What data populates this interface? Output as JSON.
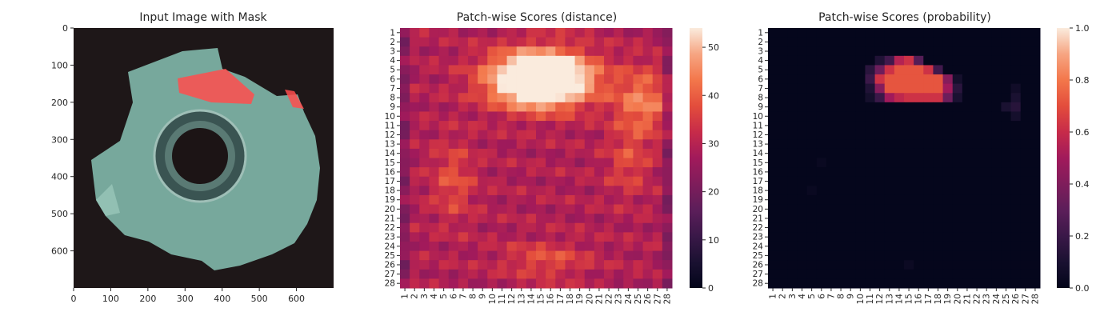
{
  "chart_data": [
    {
      "type": "image",
      "title": "Input Image with Mask",
      "xlabel": "",
      "ylabel": "",
      "xlim": [
        0,
        700
      ],
      "ylim": [
        700,
        0
      ],
      "xticks": [
        0,
        100,
        200,
        300,
        400,
        500,
        600
      ],
      "yticks": [
        0,
        100,
        200,
        300,
        400,
        500,
        600
      ],
      "mask_color": "#ff4d4d",
      "object_color": "#7fb5a8",
      "background_color": "#1e1718"
    },
    {
      "type": "heatmap",
      "title": "Patch-wise Scores (distance)",
      "xlabel": "",
      "ylabel": "",
      "rows": 28,
      "cols": 28,
      "tick_labels": [
        "1",
        "2",
        "3",
        "4",
        "5",
        "6",
        "7",
        "8",
        "9",
        "10",
        "11",
        "12",
        "13",
        "14",
        "15",
        "16",
        "17",
        "18",
        "19",
        "20",
        "21",
        "22",
        "23",
        "24",
        "25",
        "26",
        "27",
        "28"
      ],
      "colorbar": {
        "min": 0,
        "max": 54,
        "ticks": [
          0,
          10,
          20,
          30,
          40,
          50
        ],
        "colormap": "rocket"
      },
      "hotspots": [
        {
          "row": 6,
          "col": 15,
          "value": 53,
          "sigma_r": 2.0,
          "sigma_c": 3.5
        },
        {
          "row": 8.5,
          "col": 25.5,
          "value": 15,
          "sigma_r": 2.5,
          "sigma_c": 2.0
        },
        {
          "row": 17,
          "col": 6,
          "value": 9,
          "sigma_r": 3.0,
          "sigma_c": 1.5
        },
        {
          "row": 25.5,
          "col": 15.5,
          "value": 9,
          "sigma_r": 1.3,
          "sigma_c": 3.0
        },
        {
          "row": 15,
          "col": 24,
          "value": 8,
          "sigma_r": 2.5,
          "sigma_c": 1.5
        }
      ],
      "base_value": 29
    },
    {
      "type": "heatmap",
      "title": "Patch-wise Scores (probability)",
      "xlabel": "",
      "ylabel": "",
      "rows": 28,
      "cols": 28,
      "tick_labels": [
        "1",
        "2",
        "3",
        "4",
        "5",
        "6",
        "7",
        "8",
        "9",
        "10",
        "11",
        "12",
        "13",
        "14",
        "15",
        "16",
        "17",
        "18",
        "19",
        "20",
        "21",
        "22",
        "23",
        "24",
        "25",
        "26",
        "27",
        "28"
      ],
      "colorbar": {
        "min": 0,
        "max": 1.0,
        "ticks": [
          0.0,
          0.2,
          0.4,
          0.6,
          0.8,
          1.0
        ],
        "tick_labels": [
          "0.0",
          "0.2",
          "0.4",
          "0.6",
          "0.8",
          "1.0"
        ],
        "colormap": "rocket"
      },
      "cells": [
        [
          4,
          13,
          0.22
        ],
        [
          4,
          14,
          0.55
        ],
        [
          4,
          15,
          0.62
        ],
        [
          4,
          16,
          0.28
        ],
        [
          4,
          12,
          0.12
        ],
        [
          5,
          11,
          0.15
        ],
        [
          5,
          12,
          0.35
        ],
        [
          5,
          13,
          0.62
        ],
        [
          5,
          14,
          0.72
        ],
        [
          5,
          15,
          0.72
        ],
        [
          5,
          16,
          0.72
        ],
        [
          5,
          17,
          0.62
        ],
        [
          5,
          18,
          0.22
        ],
        [
          6,
          11,
          0.2
        ],
        [
          6,
          12,
          0.62
        ],
        [
          6,
          13,
          0.72
        ],
        [
          6,
          14,
          0.72
        ],
        [
          6,
          15,
          0.72
        ],
        [
          6,
          16,
          0.72
        ],
        [
          6,
          17,
          0.72
        ],
        [
          6,
          18,
          0.72
        ],
        [
          6,
          19,
          0.42
        ],
        [
          6,
          20,
          0.08
        ],
        [
          7,
          11,
          0.12
        ],
        [
          7,
          12,
          0.42
        ],
        [
          7,
          13,
          0.72
        ],
        [
          7,
          14,
          0.72
        ],
        [
          7,
          15,
          0.72
        ],
        [
          7,
          16,
          0.72
        ],
        [
          7,
          17,
          0.72
        ],
        [
          7,
          18,
          0.72
        ],
        [
          7,
          19,
          0.5
        ],
        [
          7,
          20,
          0.15
        ],
        [
          8,
          11,
          0.08
        ],
        [
          8,
          12,
          0.2
        ],
        [
          8,
          13,
          0.5
        ],
        [
          8,
          14,
          0.58
        ],
        [
          8,
          15,
          0.62
        ],
        [
          8,
          16,
          0.62
        ],
        [
          8,
          17,
          0.62
        ],
        [
          8,
          18,
          0.62
        ],
        [
          8,
          19,
          0.35
        ],
        [
          8,
          20,
          0.1
        ],
        [
          9,
          26,
          0.14
        ],
        [
          8,
          26,
          0.1
        ],
        [
          9,
          25,
          0.1
        ],
        [
          10,
          26,
          0.08
        ],
        [
          7,
          26,
          0.06
        ],
        [
          15,
          6,
          0.03
        ],
        [
          18,
          5,
          0.03
        ],
        [
          26,
          15,
          0.04
        ]
      ]
    }
  ]
}
